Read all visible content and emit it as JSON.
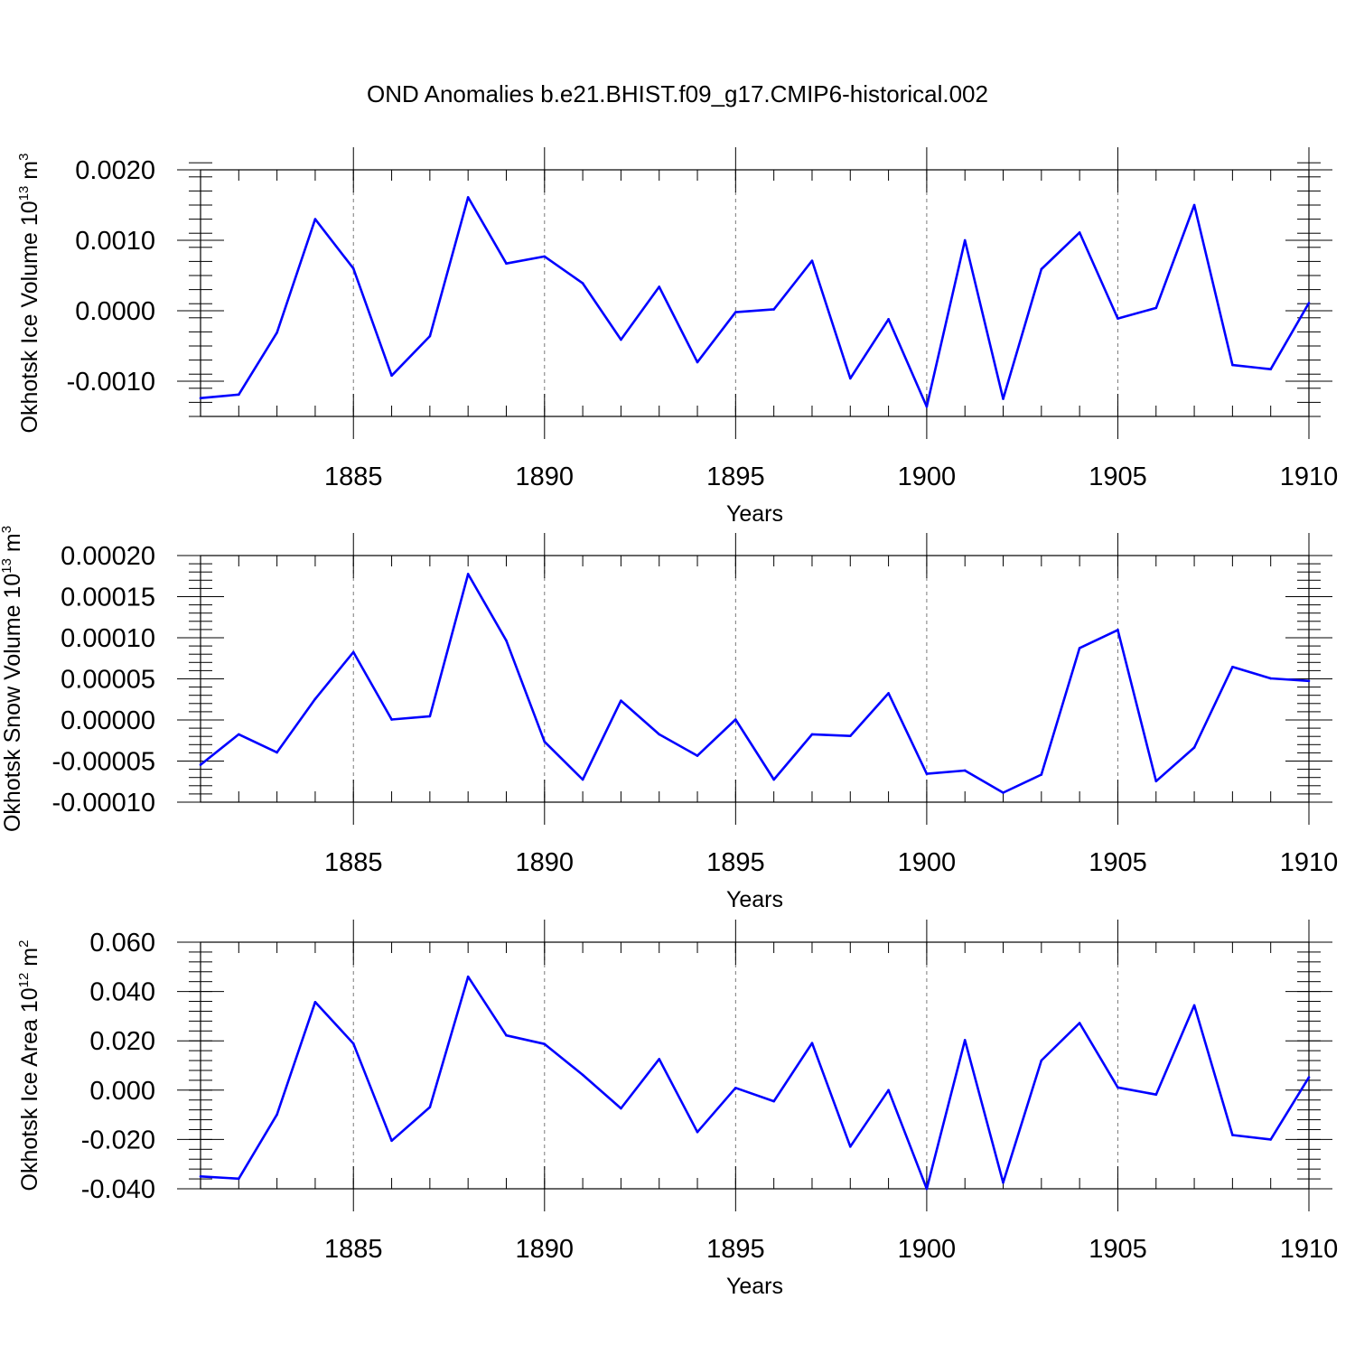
{
  "title": "OND Anomalies b.e21.BHIST.f09_g17.CMIP6-historical.002",
  "line_color": "#0000ff",
  "chart_data": [
    {
      "type": "line",
      "ylabel": "Okhotsk Ice Volume 10",
      "ylabel_exp": "13",
      "ylabel_unit": " m",
      "ylabel_unit_exp": "3",
      "xlabel": "Years",
      "xlim": [
        1881,
        1910
      ],
      "ylim": [
        -0.0015,
        0.002
      ],
      "yticks": [
        -0.001,
        0.0,
        0.001,
        0.002
      ],
      "yticklabels": [
        "-0.0010",
        "0.0000",
        "0.0010",
        "0.0020"
      ],
      "xticks": [
        1885,
        1890,
        1895,
        1900,
        1905,
        1910
      ],
      "xticklabels": [
        "1885",
        "1890",
        "1895",
        "1900",
        "1905",
        "1910"
      ],
      "x": [
        1881,
        1882,
        1883,
        1884,
        1885,
        1886,
        1887,
        1888,
        1889,
        1890,
        1891,
        1892,
        1893,
        1894,
        1895,
        1896,
        1897,
        1898,
        1899,
        1900,
        1901,
        1902,
        1903,
        1904,
        1905,
        1906,
        1907,
        1908,
        1909,
        1910
      ],
      "values": [
        -0.00124,
        -0.00119,
        -0.00031,
        0.0013,
        0.0006,
        -0.00092,
        -0.00036,
        0.00161,
        0.00067,
        0.00077,
        0.00039,
        -0.00041,
        0.00034,
        -0.00073,
        -2e-05,
        2e-05,
        0.00071,
        -0.00096,
        -0.00012,
        -0.00136,
        0.001,
        -0.00125,
        0.00059,
        0.00111,
        -0.00011,
        4e-05,
        0.0015,
        -0.00077,
        -0.00083,
        0.00011
      ]
    },
    {
      "type": "line",
      "ylabel": "Okhotsk Snow Volume 10",
      "ylabel_exp": "13",
      "ylabel_unit": " m",
      "ylabel_unit_exp": "3",
      "xlabel": "Years",
      "xlim": [
        1881,
        1910
      ],
      "ylim": [
        -0.0001,
        0.0002
      ],
      "yticks": [
        -0.0001,
        -5e-05,
        0.0,
        5e-05,
        0.0001,
        0.00015,
        0.0002
      ],
      "yticklabels": [
        "-0.00010",
        "-0.00005",
        "0.00000",
        "0.00005",
        "0.00010",
        "0.00015",
        "0.00020"
      ],
      "xticks": [
        1885,
        1890,
        1895,
        1900,
        1905,
        1910
      ],
      "xticklabels": [
        "1885",
        "1890",
        "1895",
        "1900",
        "1905",
        "1910"
      ],
      "x": [
        1881,
        1882,
        1883,
        1884,
        1885,
        1886,
        1887,
        1888,
        1889,
        1890,
        1891,
        1892,
        1893,
        1894,
        1895,
        1896,
        1897,
        1898,
        1899,
        1900,
        1901,
        1902,
        1903,
        1904,
        1905,
        1906,
        1907,
        1908,
        1909,
        1910
      ],
      "values": [
        -5.45e-05,
        -1.75e-05,
        -3.95e-05,
        2.55e-05,
        8.25e-05,
        5e-07,
        4.5e-06,
        0.0001775,
        9.65e-05,
        -2.65e-05,
        -7.25e-05,
        2.35e-05,
        -1.75e-05,
        -4.35e-05,
        5e-07,
        -7.25e-05,
        -1.75e-05,
        -1.95e-05,
        3.25e-05,
        -6.55e-05,
        -6.15e-05,
        -8.85e-05,
        -6.65e-05,
        8.75e-05,
        0.0001095,
        -7.45e-05,
        -3.35e-05,
        6.45e-05,
        5.05e-05,
        4.75e-05
      ]
    },
    {
      "type": "line",
      "ylabel": "Okhotsk Ice Area 10",
      "ylabel_exp": "12",
      "ylabel_unit": " m",
      "ylabel_unit_exp": "2",
      "xlabel": "Years",
      "xlim": [
        1881,
        1910
      ],
      "ylim": [
        -0.04,
        0.06
      ],
      "yticks": [
        -0.04,
        -0.02,
        0.0,
        0.02,
        0.04,
        0.06
      ],
      "yticklabels": [
        "-0.040",
        "-0.020",
        "0.000",
        "0.020",
        "0.040",
        "0.060"
      ],
      "xticks": [
        1885,
        1890,
        1895,
        1900,
        1905,
        1910
      ],
      "xticklabels": [
        "1885",
        "1890",
        "1895",
        "1900",
        "1905",
        "1910"
      ],
      "x": [
        1881,
        1882,
        1883,
        1884,
        1885,
        1886,
        1887,
        1888,
        1889,
        1890,
        1891,
        1892,
        1893,
        1894,
        1895,
        1896,
        1897,
        1898,
        1899,
        1900,
        1901,
        1902,
        1903,
        1904,
        1905,
        1906,
        1907,
        1908,
        1909,
        1910
      ],
      "values": [
        -0.035,
        -0.0359,
        -0.0099,
        0.0357,
        0.0189,
        -0.0205,
        -0.0069,
        0.046,
        0.0222,
        0.0187,
        0.0062,
        -0.0074,
        0.0126,
        -0.017,
        0.0009,
        -0.0045,
        0.0191,
        -0.0229,
        0.0,
        -0.04,
        0.0203,
        -0.0375,
        0.012,
        0.0272,
        0.0011,
        -0.0018,
        0.0344,
        -0.0182,
        -0.02,
        0.0052
      ]
    }
  ]
}
